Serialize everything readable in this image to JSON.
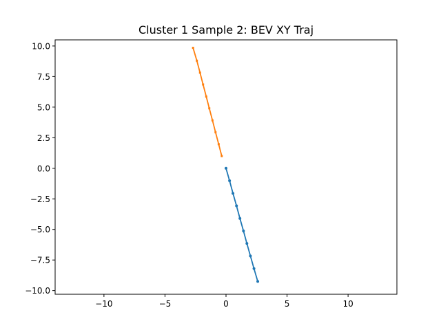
{
  "chart_data": {
    "type": "line",
    "title": "Cluster 1 Sample 2: BEV XY Traj",
    "xlabel": "",
    "ylabel": "",
    "xlim": [
      -14,
      14
    ],
    "ylim": [
      -10.3,
      10.5
    ],
    "xticks": [
      -10,
      -5,
      0,
      5,
      10
    ],
    "xtick_labels": [
      "−10",
      "−5",
      "0",
      "5",
      "10"
    ],
    "yticks": [
      -10.0,
      -7.5,
      -5.0,
      -2.5,
      0.0,
      2.5,
      5.0,
      7.5,
      10.0
    ],
    "ytick_labels": [
      "−10.0",
      "−7.5",
      "−5.0",
      "−2.5",
      "0.0",
      "2.5",
      "5.0",
      "7.5",
      "10.0"
    ],
    "grid": false,
    "series": [
      {
        "color": "#1f77b4",
        "marker": "dot",
        "x": [
          0.0,
          0.29,
          0.57,
          0.86,
          1.14,
          1.43,
          1.71,
          2.0,
          2.29,
          2.6
        ],
        "y": [
          0.0,
          -1.02,
          -2.05,
          -3.07,
          -4.1,
          -5.12,
          -6.15,
          -7.17,
          -8.2,
          -9.25
        ]
      },
      {
        "color": "#ff7f0e",
        "marker": "tick",
        "x": [
          -0.35,
          -0.6,
          -0.86,
          -1.11,
          -1.37,
          -1.62,
          -1.88,
          -2.13,
          -2.39,
          -2.7
        ],
        "y": [
          1.0,
          1.97,
          2.95,
          3.92,
          4.9,
          5.87,
          6.85,
          7.82,
          8.8,
          9.85
        ]
      }
    ]
  }
}
